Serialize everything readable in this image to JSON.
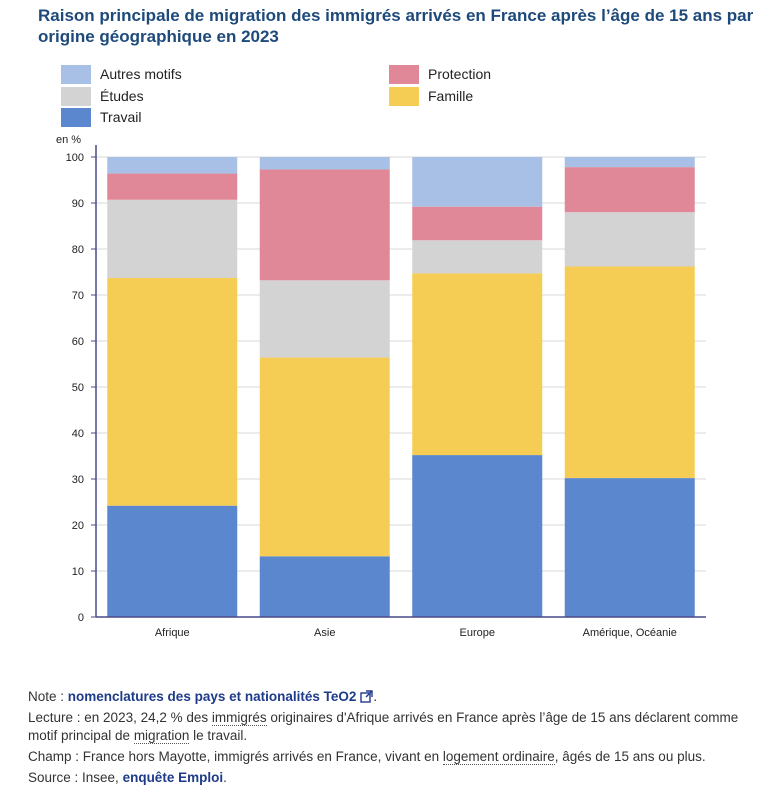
{
  "title": "Raison principale de migration des immigrés arrivés en France après l’âge de 15 ans par origine géographique en 2023",
  "colors": {
    "title": "#1e4a7b",
    "link": "#1e3a8a",
    "axis": "#4a4a8a",
    "grid": "#d9d9d9"
  },
  "legend": [
    {
      "key": "autres",
      "label": "Autres motifs",
      "color": "#a8bfe6"
    },
    {
      "key": "protection",
      "label": "Protection",
      "color": "#e08898"
    },
    {
      "key": "etudes",
      "label": "Études",
      "color": "#d3d3d3"
    },
    {
      "key": "famille",
      "label": "Famille",
      "color": "#f5cd55"
    },
    {
      "key": "travail",
      "label": "Travail",
      "color": "#5b87ce"
    }
  ],
  "chart_data": {
    "type": "bar",
    "stacked": true,
    "unit_label": "en %",
    "categories": [
      "Afrique",
      "Asie",
      "Europe",
      "Amérique, Océanie"
    ],
    "series": [
      {
        "name": "Travail",
        "color": "#5b87ce",
        "values": [
          24.2,
          13.2,
          35.2,
          30.2
        ]
      },
      {
        "name": "Famille",
        "color": "#f5cd55",
        "values": [
          49.5,
          43.2,
          39.5,
          46.0
        ]
      },
      {
        "name": "Études",
        "color": "#d3d3d3",
        "values": [
          17.0,
          16.8,
          7.2,
          11.8
        ]
      },
      {
        "name": "Protection",
        "color": "#e08898",
        "values": [
          5.7,
          24.1,
          7.3,
          9.8
        ]
      },
      {
        "name": "Autres motifs",
        "color": "#a8bfe6",
        "values": [
          3.6,
          2.7,
          10.8,
          2.2
        ]
      }
    ],
    "ylim": [
      0,
      100
    ],
    "yticks": [
      0,
      10,
      20,
      30,
      40,
      50,
      60,
      70,
      80,
      90,
      100
    ],
    "grid": true,
    "legend_position": "top"
  },
  "notes": {
    "note_prefix": "Note : ",
    "note_link": "nomenclatures des pays et nationalités TeO2",
    "note_suffix": ".",
    "lecture_prefix": "Lecture : en 2023, 24,2 % des ",
    "lecture_term1": "immigrés",
    "lecture_middle": " originaires d'Afrique arrivés en France après l’âge de 15 ans déclarent comme motif principal de ",
    "lecture_term2": "migration",
    "lecture_suffix": " le travail.",
    "champ_prefix": "Champ : France hors Mayotte, immigrés arrivés en France, vivant en ",
    "champ_term": "logement ordinaire",
    "champ_suffix": ", âgés de 15 ans ou plus.",
    "source_prefix": "Source : Insee, ",
    "source_link": "enquête Emploi",
    "source_suffix": "."
  }
}
